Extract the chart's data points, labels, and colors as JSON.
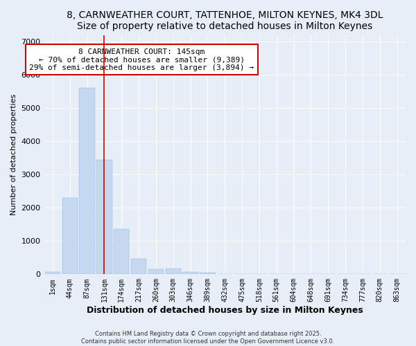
{
  "title": "8, CARNWEATHER COURT, TATTENHOE, MILTON KEYNES, MK4 3DL",
  "subtitle": "Size of property relative to detached houses in Milton Keynes",
  "xlabel": "Distribution of detached houses by size in Milton Keynes",
  "ylabel": "Number of detached properties",
  "categories": [
    "1sqm",
    "44sqm",
    "87sqm",
    "131sqm",
    "174sqm",
    "217sqm",
    "260sqm",
    "303sqm",
    "346sqm",
    "389sqm",
    "432sqm",
    "475sqm",
    "518sqm",
    "561sqm",
    "604sqm",
    "648sqm",
    "691sqm",
    "734sqm",
    "777sqm",
    "820sqm",
    "863sqm"
  ],
  "values": [
    75,
    2300,
    5600,
    3450,
    1350,
    470,
    160,
    165,
    60,
    50,
    0,
    0,
    0,
    0,
    0,
    0,
    0,
    0,
    0,
    0,
    0
  ],
  "bar_color": "#c5d8f0",
  "bar_edge_color": "#8bb4d8",
  "background_color": "#e8eef8",
  "grid_color": "#ffffff",
  "vline_x": 3.0,
  "vline_color": "#cc0000",
  "ylim": [
    0,
    7200
  ],
  "yticks": [
    0,
    1000,
    2000,
    3000,
    4000,
    5000,
    6000,
    7000
  ],
  "annotation_text": "8 CARNWEATHER COURT: 145sqm\n← 70% of detached houses are smaller (9,389)\n29% of semi-detached houses are larger (3,894) →",
  "annotation_box_color": "#ffffff",
  "annotation_box_edge": "#cc0000",
  "footnote1": "Contains HM Land Registry data © Crown copyright and database right 2025.",
  "footnote2": "Contains public sector information licensed under the Open Government Licence v3.0."
}
